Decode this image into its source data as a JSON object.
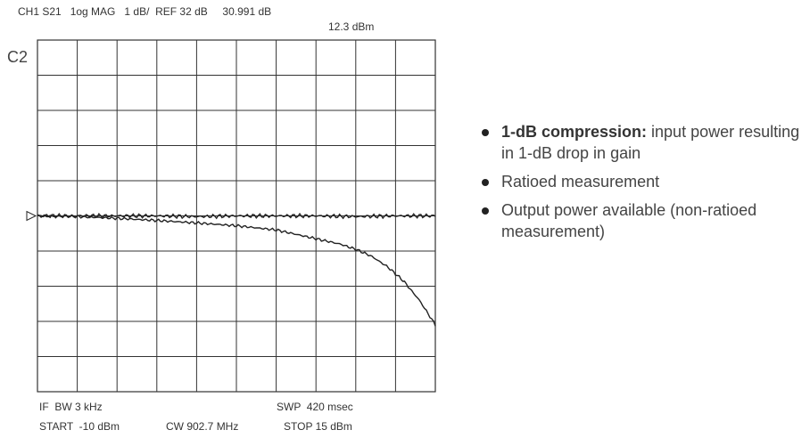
{
  "header": {
    "line": "CH1 S21   1og MAG   1 dB/  REF 32 dB     30.991 dB",
    "value2": "12.3 dBm"
  },
  "channel_label": "C2",
  "footer": {
    "ifbw": "IF  BW 3 kHz",
    "sweep": "SWP  420 msec",
    "start": "START  -10 dBm",
    "cw": "CW 902.7 MHz",
    "stop": "STOP 15 dBm"
  },
  "bullets": [
    {
      "bold": "1-dB compression:",
      "text": " input power resulting in 1-dB drop in gain"
    },
    {
      "bold": "",
      "text": "Ratioed measurement"
    },
    {
      "bold": "",
      "text": "Output power available (non-ratioed measurement)"
    }
  ],
  "colors": {
    "grid": "#333333",
    "trace": "#222222",
    "text": "#444444"
  },
  "chart_data": {
    "type": "line",
    "title": "",
    "xlabel": "",
    "ylabel": "",
    "xlim": [
      -10,
      15
    ],
    "ylim": [
      27,
      37
    ],
    "grid": true,
    "reference_level": 32,
    "reference_marker": "left-arrow",
    "series": [
      {
        "x": [
          -10,
          -7.5,
          -5,
          -2.5,
          0,
          2.5,
          5,
          7.5,
          10,
          12.5,
          15
        ],
        "y": [
          32.0,
          32.0,
          32.0,
          32.0,
          31.98,
          32.0,
          32.0,
          32.0,
          31.98,
          32.0,
          32.0
        ]
      },
      {
        "x": [
          -10,
          -7.5,
          -5,
          -2.5,
          0,
          2.5,
          5,
          7.5,
          9,
          10,
          11,
          12,
          13,
          14,
          15
        ],
        "y": [
          32.0,
          31.98,
          31.93,
          31.87,
          31.8,
          31.72,
          31.6,
          31.35,
          31.2,
          31.05,
          30.85,
          30.55,
          30.15,
          29.6,
          28.9
        ]
      }
    ]
  }
}
